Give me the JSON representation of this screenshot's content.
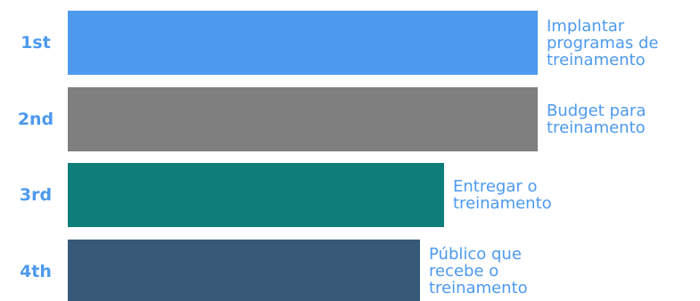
{
  "chart_data": {
    "type": "bar",
    "orientation": "horizontal",
    "categories": [
      "1st",
      "2nd",
      "3rd",
      "4th"
    ],
    "values": [
      100,
      100,
      80,
      75
    ],
    "labels": [
      [
        "Implantar",
        "programas de",
        "treinamento"
      ],
      [
        "Budget para",
        "treinamento"
      ],
      [
        "Entregar o",
        "treinamento"
      ],
      [
        "Público que",
        "recebe o",
        "treinamento"
      ]
    ],
    "colors": [
      "#4D9AEE",
      "#7F7F7F",
      "#0E7E7A",
      "#365978"
    ],
    "text_color": "#4D9AEE",
    "xlim": [
      0,
      100
    ],
    "grid": false,
    "axes_visible": false
  }
}
